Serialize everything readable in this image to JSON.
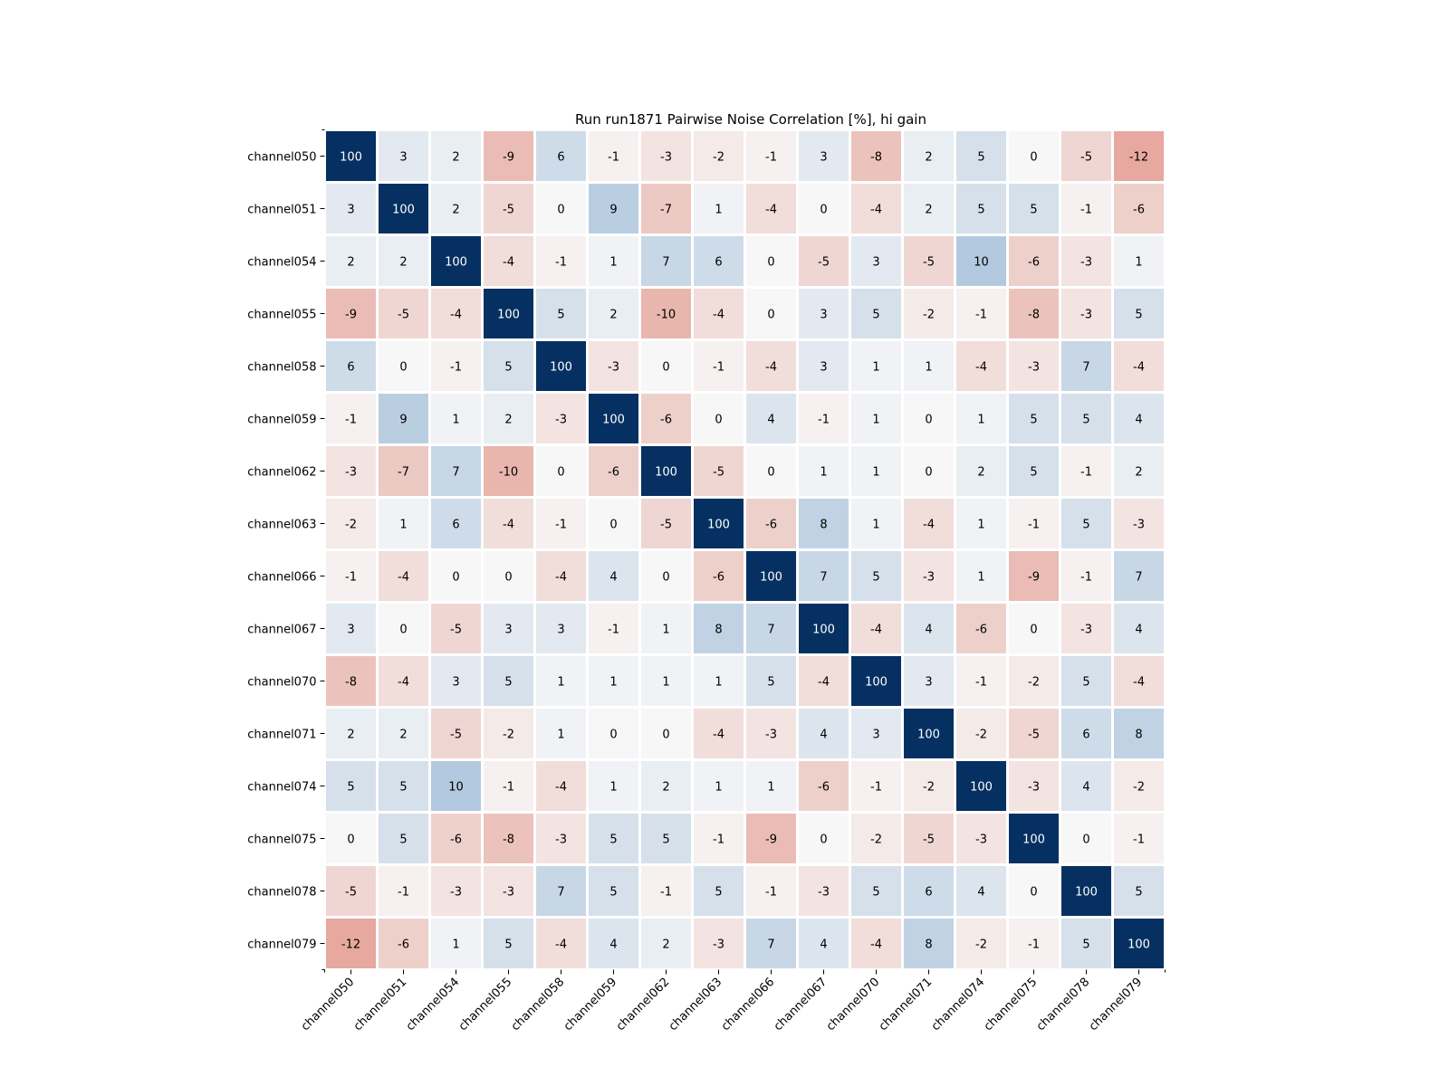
{
  "chart_data": {
    "type": "heatmap",
    "title": "Run run1871 Pairwise Noise Correlation [%], hi gain",
    "xlabel": "",
    "ylabel": "",
    "labels": [
      "channel050",
      "channel051",
      "channel054",
      "channel055",
      "channel058",
      "channel059",
      "channel062",
      "channel063",
      "channel066",
      "channel067",
      "channel070",
      "channel071",
      "channel074",
      "channel075",
      "channel078",
      "channel079"
    ],
    "values": [
      [
        100,
        3,
        2,
        -9,
        6,
        -1,
        -3,
        -2,
        -1,
        3,
        -8,
        2,
        5,
        0,
        -5,
        -12
      ],
      [
        3,
        100,
        2,
        -5,
        0,
        9,
        -7,
        1,
        -4,
        0,
        -4,
        2,
        5,
        5,
        -1,
        -6
      ],
      [
        2,
        2,
        100,
        -4,
        -1,
        1,
        7,
        6,
        0,
        -5,
        3,
        -5,
        10,
        -6,
        -3,
        1
      ],
      [
        -9,
        -5,
        -4,
        100,
        5,
        2,
        -10,
        -4,
        0,
        3,
        5,
        -2,
        -1,
        -8,
        -3,
        5
      ],
      [
        6,
        0,
        -1,
        5,
        100,
        -3,
        0,
        -1,
        -4,
        3,
        1,
        1,
        -4,
        -3,
        7,
        -4
      ],
      [
        -1,
        9,
        1,
        2,
        -3,
        100,
        -6,
        0,
        4,
        -1,
        1,
        0,
        1,
        5,
        5,
        4
      ],
      [
        -3,
        -7,
        7,
        -10,
        0,
        -6,
        100,
        -5,
        0,
        1,
        1,
        0,
        2,
        5,
        -1,
        2
      ],
      [
        -2,
        1,
        6,
        -4,
        -1,
        0,
        -5,
        100,
        -6,
        8,
        1,
        -4,
        1,
        -1,
        5,
        -3
      ],
      [
        -1,
        -4,
        0,
        0,
        -4,
        4,
        0,
        -6,
        100,
        7,
        5,
        -3,
        1,
        -9,
        -1,
        7
      ],
      [
        3,
        0,
        -5,
        3,
        3,
        -1,
        1,
        8,
        7,
        100,
        -4,
        4,
        -6,
        0,
        -3,
        4
      ],
      [
        -8,
        -4,
        3,
        5,
        1,
        1,
        1,
        1,
        5,
        -4,
        100,
        3,
        -1,
        -2,
        5,
        -4
      ],
      [
        2,
        2,
        -5,
        -2,
        1,
        0,
        0,
        -4,
        -3,
        4,
        3,
        100,
        -2,
        -5,
        6,
        8
      ],
      [
        5,
        5,
        10,
        -1,
        -4,
        1,
        2,
        1,
        1,
        -6,
        -1,
        -2,
        100,
        -3,
        4,
        -2
      ],
      [
        0,
        5,
        -6,
        -8,
        -3,
        5,
        5,
        -1,
        -9,
        0,
        -2,
        -5,
        -3,
        100,
        0,
        -1
      ],
      [
        -5,
        -1,
        -3,
        -3,
        7,
        5,
        -1,
        5,
        -1,
        -3,
        5,
        6,
        4,
        0,
        100,
        5
      ],
      [
        -12,
        -6,
        1,
        5,
        -4,
        4,
        2,
        -3,
        7,
        4,
        -4,
        8,
        -2,
        -1,
        5,
        100
      ]
    ],
    "color_scale": {
      "name": "RdBu",
      "vmin": -30,
      "vmax": 30,
      "negative": "#d6604d",
      "neutral": "#f7f7f7",
      "positive": "#053061",
      "diagonal": "#053061"
    },
    "colorbar": false
  }
}
